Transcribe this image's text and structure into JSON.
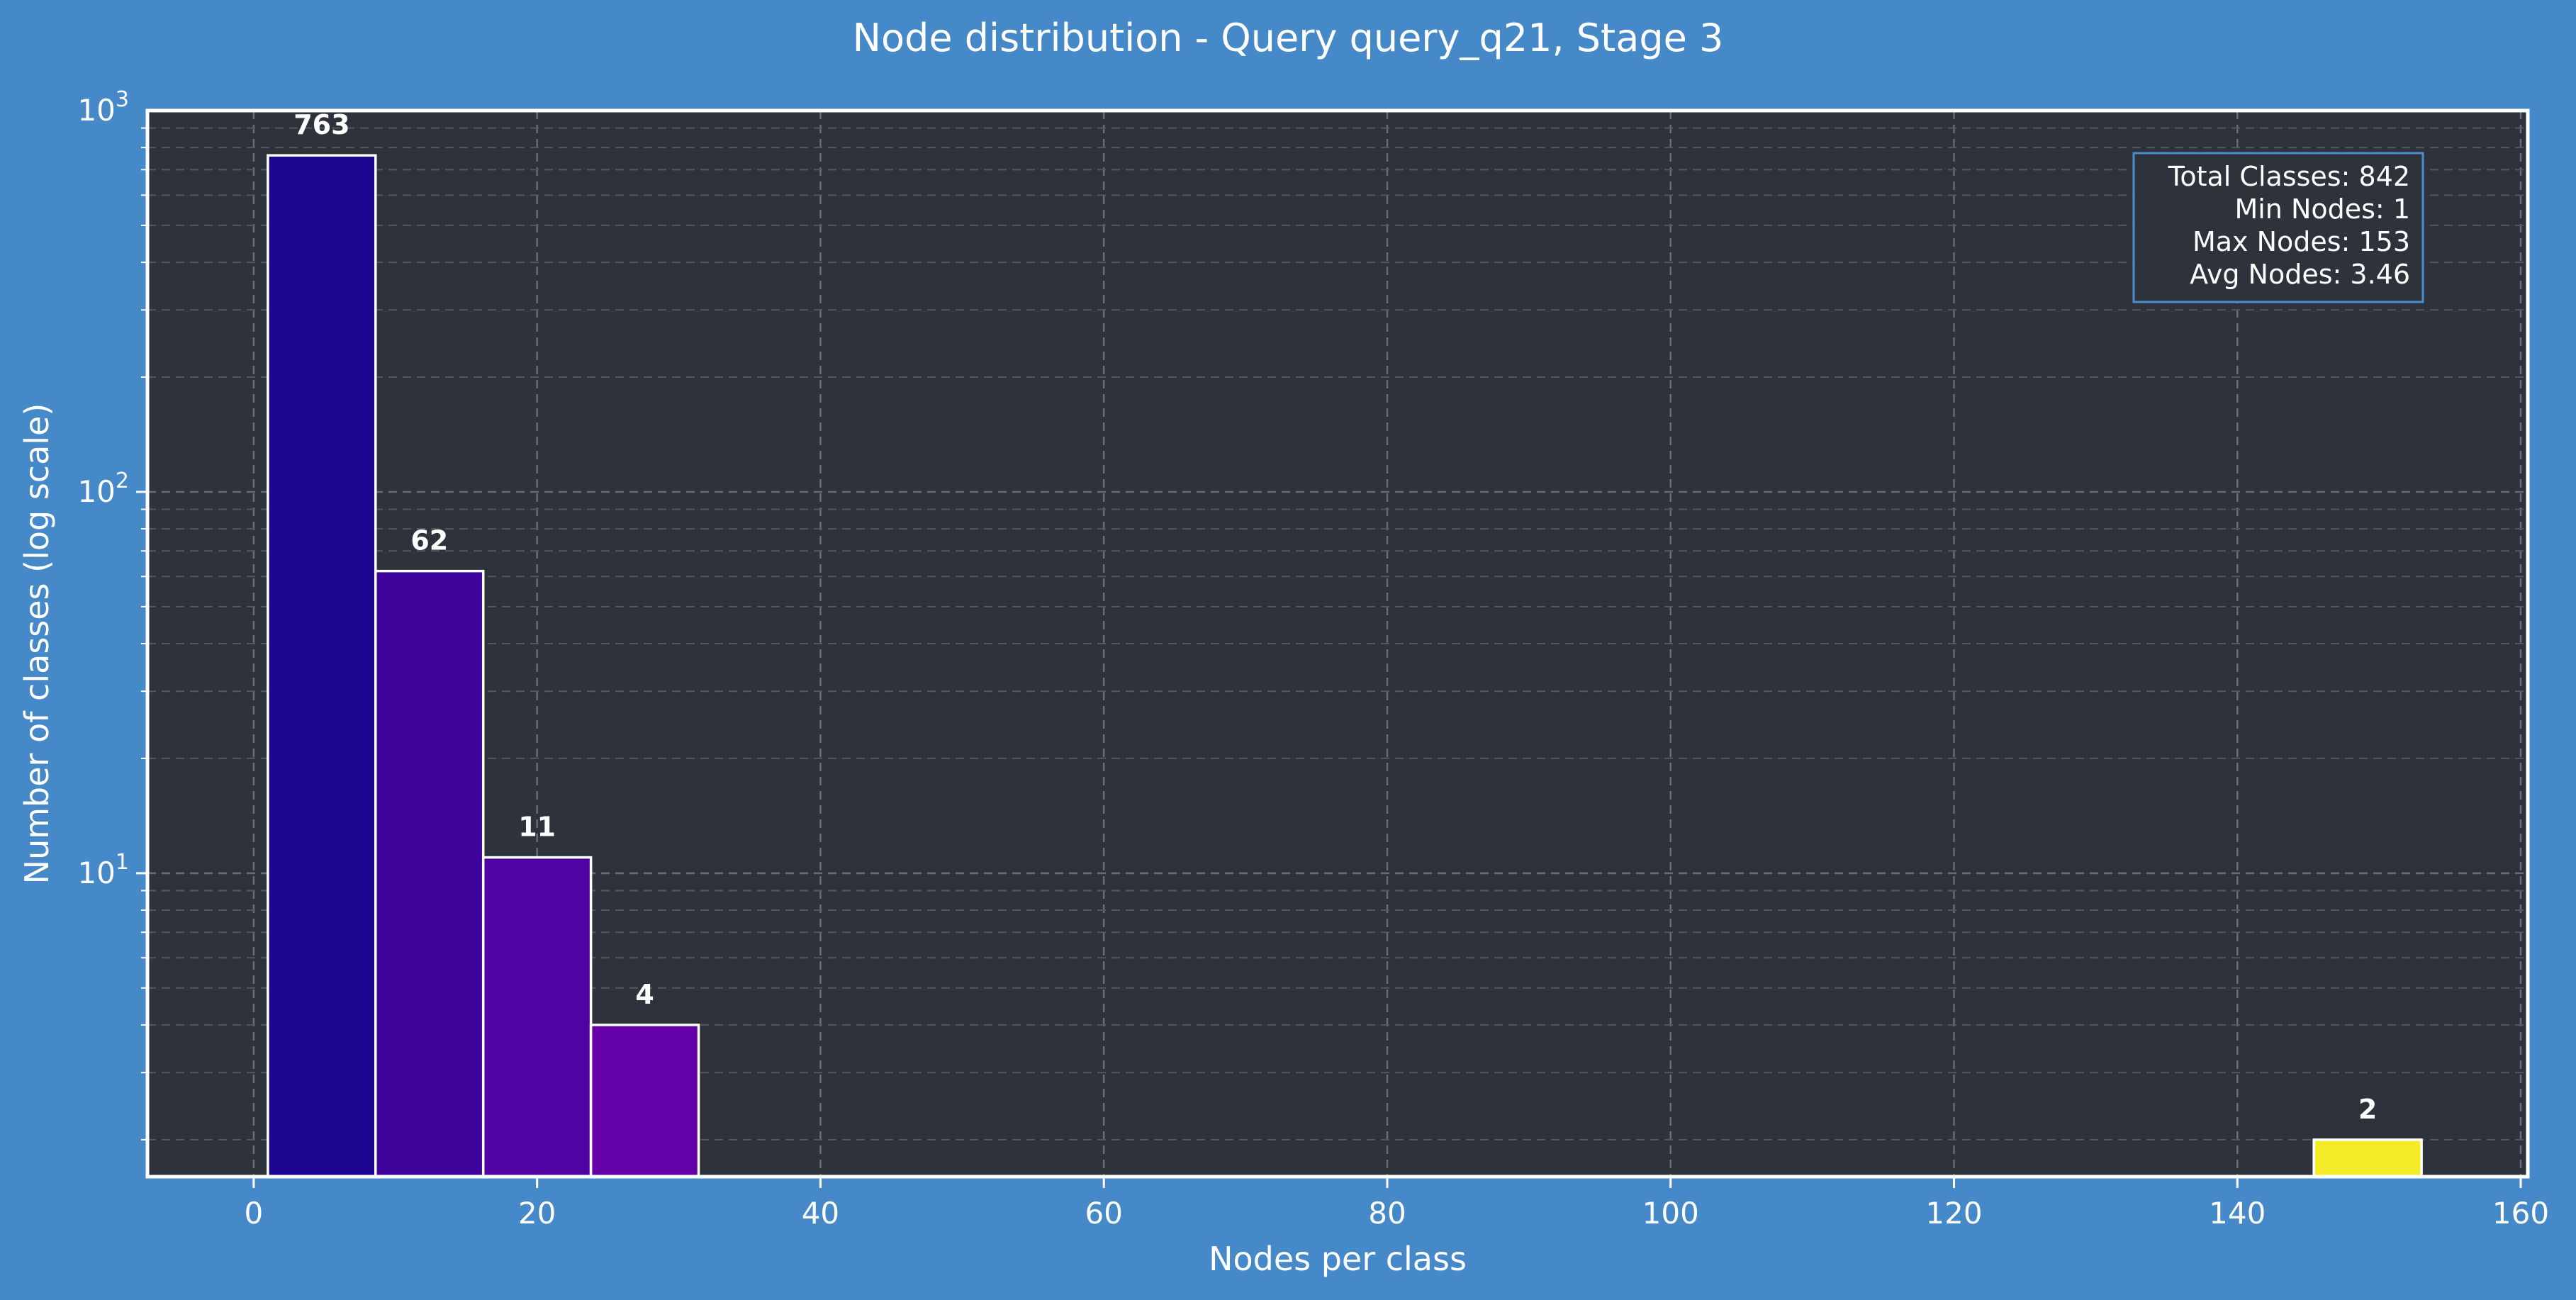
{
  "chart_data": {
    "type": "bar",
    "title": "Node distribution - Query query_q21, Stage 3",
    "xlabel": "Nodes per class",
    "ylabel": "Number of classes (log scale)",
    "xlim": [
      -7.5,
      160.5
    ],
    "ylim": [
      1.6,
      1000
    ],
    "yscale": "log",
    "grid": true,
    "x_ticks": [
      0,
      20,
      40,
      60,
      80,
      100,
      120,
      140,
      160
    ],
    "y_ticks": [
      {
        "value": 10,
        "base": "10",
        "exp": "1"
      },
      {
        "value": 100,
        "base": "10",
        "exp": "2"
      },
      {
        "value": 1000,
        "base": "10",
        "exp": "3"
      }
    ],
    "bars": [
      {
        "x0": 1.0,
        "x1": 8.6,
        "value": 763,
        "label": "763",
        "color": "#1c0590"
      },
      {
        "x0": 8.6,
        "x1": 16.2,
        "value": 62,
        "label": "62",
        "color": "#3e049c"
      },
      {
        "x0": 16.2,
        "x1": 23.8,
        "value": 11,
        "label": "11",
        "color": "#5102a3"
      },
      {
        "x0": 23.8,
        "x1": 31.4,
        "value": 4,
        "label": "4",
        "color": "#6300a7"
      },
      {
        "x0": 145.4,
        "x1": 153.0,
        "value": 2,
        "label": "2",
        "color": "#f4ea26"
      }
    ],
    "stats_box": {
      "position": "top-right",
      "lines": [
        "Total Classes: 842",
        "Min Nodes: 1",
        "Max Nodes: 153",
        "Avg Nodes: 3.46"
      ]
    },
    "colors": {
      "figure_bg": "#4589c8",
      "plot_bg": "#2e333b",
      "bar_edge": "#ffffff",
      "stats_border": "#4a8ed0"
    }
  }
}
